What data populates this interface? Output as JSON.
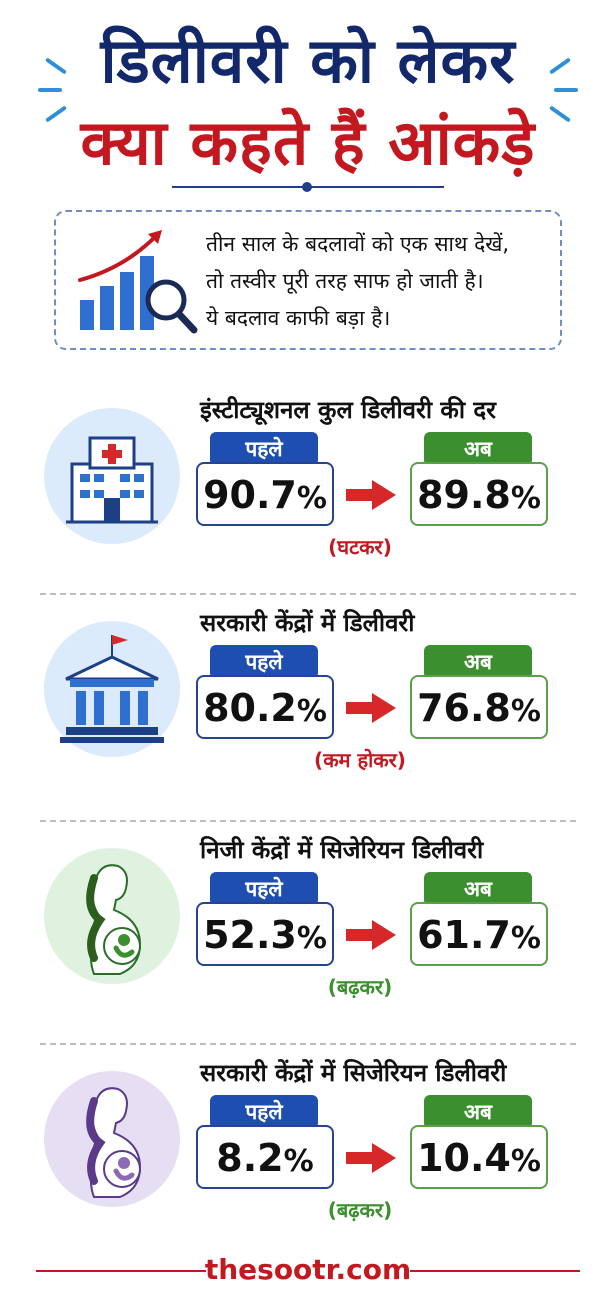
{
  "title": {
    "line1": "डिलीवरी को लेकर",
    "line2": "क्या कहते हैं आंकड़े"
  },
  "intro": {
    "lines": [
      "तीन साल के बदलावों को एक साथ देखें,",
      "तो तस्वीर पूरी तरह साफ हो जाती है।",
      "ये बदलाव काफी बड़ा है।"
    ],
    "icon": "growth-chart-magnifier-icon"
  },
  "labels": {
    "before": "पहले",
    "after": "अब"
  },
  "percent_sign": "%",
  "sections": [
    {
      "title": "इंस्टीट्यूशनल कुल डिलीवरी की दर",
      "before": "90.7",
      "after": "89.8",
      "change": "(घटकर)",
      "trend": "down",
      "icon": "hospital-icon"
    },
    {
      "title": "सरकारी केंद्रों में डिलीवरी",
      "before": "80.2",
      "after": "76.8",
      "change": "(कम होकर)",
      "trend": "down",
      "icon": "government-building-icon"
    },
    {
      "title": "निजी केंद्रों में सिजेरियन डिलीवरी",
      "before": "52.3",
      "after": "61.7",
      "change": "(बढ़कर)",
      "trend": "up",
      "icon": "pregnant-woman-icon"
    },
    {
      "title": "सरकारी केंद्रों में सिजेरियन डिलीवरी",
      "before": "8.2",
      "after": "10.4",
      "change": "(बढ़कर)",
      "trend": "up",
      "icon": "pregnant-woman-icon"
    }
  ],
  "footer": {
    "site": "thesootr.com"
  },
  "colors": {
    "navy": "#12286b",
    "red": "#c3181f",
    "blue": "#1e4fb0",
    "green": "#3c8f2e"
  }
}
